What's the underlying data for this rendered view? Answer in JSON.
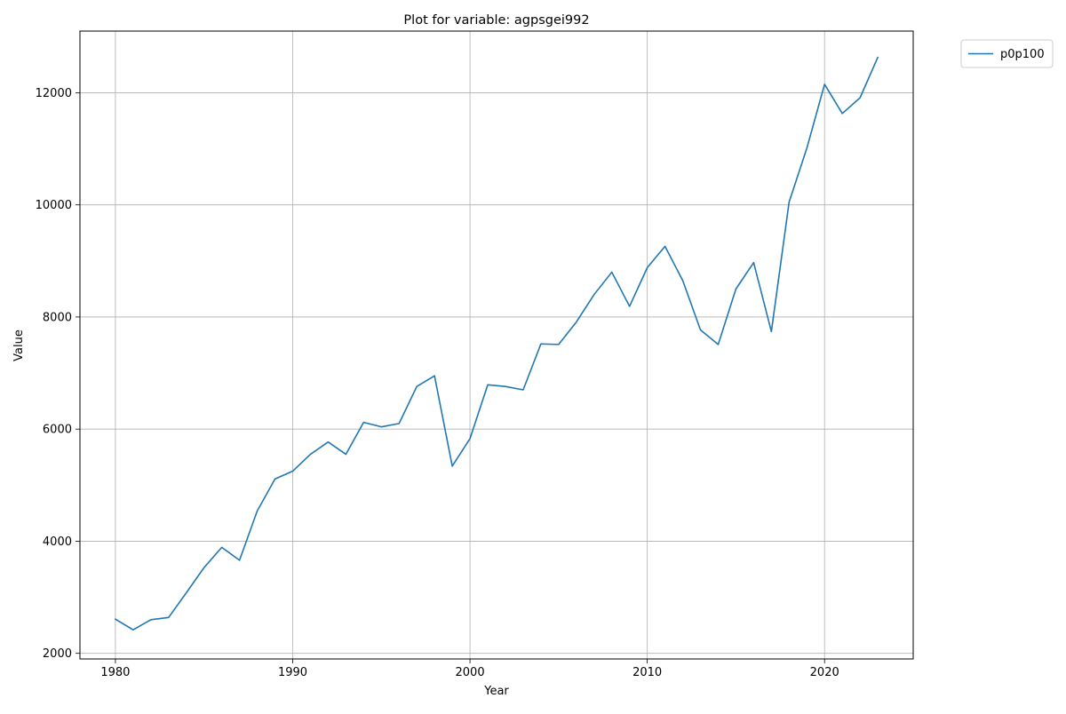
{
  "chart_data": {
    "type": "line",
    "title": "Plot for variable: agpsgei992",
    "xlabel": "Year",
    "ylabel": "Value",
    "xlim": [
      1978,
      2025
    ],
    "ylim": [
      1900,
      13100
    ],
    "x_ticks": [
      1980,
      1990,
      2000,
      2010,
      2020
    ],
    "y_ticks": [
      2000,
      4000,
      6000,
      8000,
      10000,
      12000
    ],
    "grid": true,
    "legend_position": "outside-top-right",
    "series": [
      {
        "name": "p0p100",
        "color": "#1f77b4",
        "x": [
          1980,
          1981,
          1982,
          1983,
          1984,
          1985,
          1986,
          1987,
          1988,
          1989,
          1990,
          1991,
          1992,
          1993,
          1994,
          1995,
          1996,
          1997,
          1998,
          1999,
          2000,
          2001,
          2002,
          2003,
          2004,
          2005,
          2006,
          2007,
          2008,
          2009,
          2010,
          2011,
          2012,
          2013,
          2014,
          2015,
          2016,
          2017,
          2018,
          2019,
          2020,
          2021,
          2022,
          2023
        ],
        "values": [
          2610,
          2420,
          2600,
          2640,
          3080,
          3530,
          3890,
          3660,
          4540,
          5110,
          5250,
          5550,
          5770,
          5550,
          6120,
          6040,
          6100,
          6760,
          6950,
          5340,
          5830,
          6790,
          6760,
          6700,
          7520,
          7510,
          7910,
          8400,
          8800,
          8190,
          8880,
          9260,
          8650,
          7770,
          7510,
          8500,
          8970,
          7740,
          10050,
          11010,
          12150,
          11630,
          11910,
          12630
        ]
      }
    ]
  }
}
